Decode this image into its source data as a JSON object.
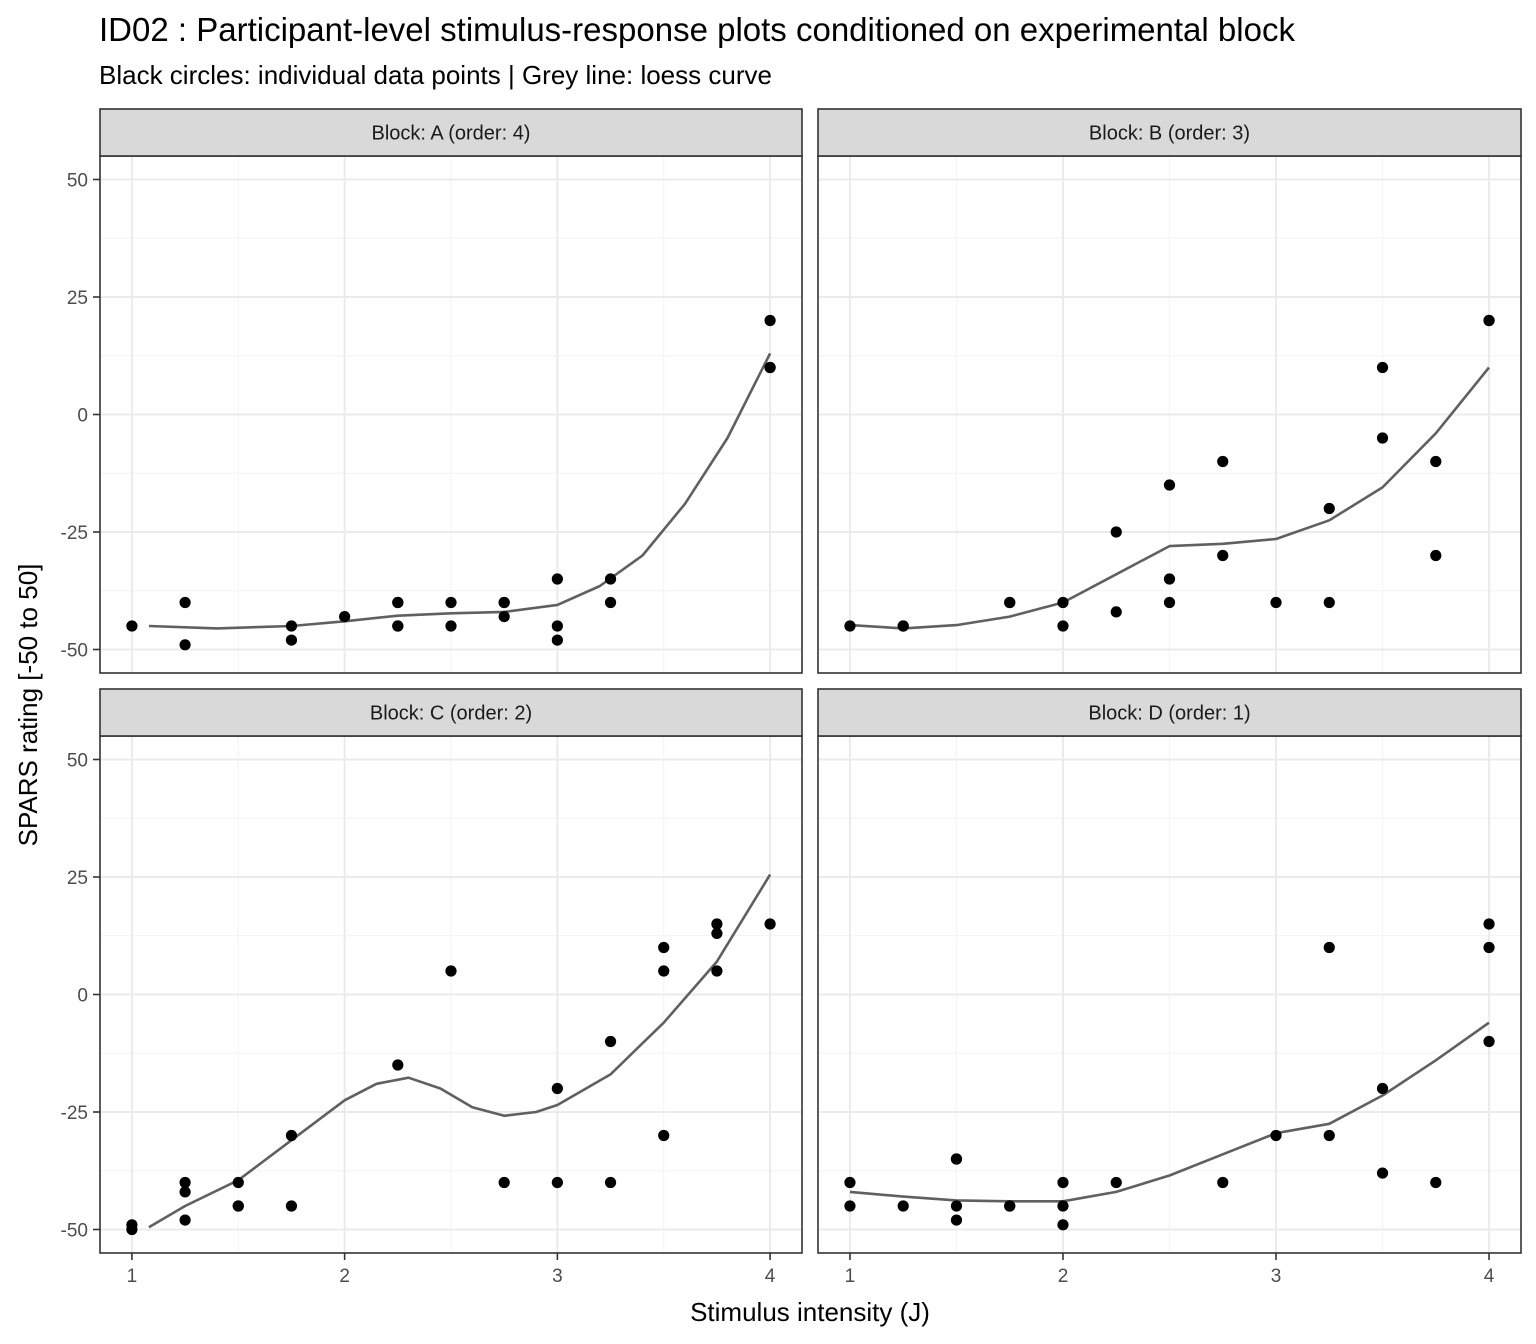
{
  "chart_data": {
    "type": "scatter",
    "title": "ID02 : Participant-level stimulus-response plots conditioned on experimental block",
    "subtitle": "Black circles: individual data points | Grey line: loess curve",
    "xlabel": "Stimulus intensity (J)",
    "ylabel": "SPARS rating [-50 to 50]",
    "xlim": [
      0.85,
      4.15
    ],
    "ylim": [
      -55,
      55
    ],
    "x_ticks": [
      1,
      2,
      3,
      4
    ],
    "y_ticks": [
      -50,
      -25,
      0,
      25,
      50
    ],
    "x_tick_labels": [
      "1",
      "2",
      "3",
      "4"
    ],
    "y_tick_labels": [
      "-50",
      "-25",
      "0",
      "25",
      "50"
    ],
    "grid": true,
    "colors": {
      "points": "#000000",
      "loess": "#606060",
      "strip_fill": "#d9d9d9",
      "panel_border": "#333333",
      "grid_major": "#ebebeb",
      "grid_minor": "#f5f5f5"
    },
    "panels": [
      {
        "strip": "Block: A (order: 4)",
        "points": [
          [
            1,
            -45
          ],
          [
            1.25,
            -40
          ],
          [
            1.25,
            -49
          ],
          [
            1.75,
            -45
          ],
          [
            1.75,
            -48
          ],
          [
            2,
            -43
          ],
          [
            2.25,
            -40
          ],
          [
            2.25,
            -40
          ],
          [
            2.25,
            -45
          ],
          [
            2.25,
            -45
          ],
          [
            2.5,
            -40
          ],
          [
            2.5,
            -45
          ],
          [
            2.75,
            -40
          ],
          [
            2.75,
            -40
          ],
          [
            2.75,
            -43
          ],
          [
            3,
            -35
          ],
          [
            3,
            -45
          ],
          [
            3,
            -48
          ],
          [
            3.25,
            -35
          ],
          [
            3.25,
            -40
          ],
          [
            4,
            20
          ],
          [
            4,
            10
          ],
          [
            4,
            10
          ]
        ],
        "loess": [
          [
            1.08,
            -45
          ],
          [
            1.4,
            -45.5
          ],
          [
            1.75,
            -45
          ],
          [
            2.0,
            -44
          ],
          [
            2.25,
            -42.8
          ],
          [
            2.5,
            -42.3
          ],
          [
            2.75,
            -42
          ],
          [
            3.0,
            -40.5
          ],
          [
            3.2,
            -36.5
          ],
          [
            3.4,
            -30
          ],
          [
            3.6,
            -19
          ],
          [
            3.8,
            -5
          ],
          [
            4.0,
            13
          ]
        ]
      },
      {
        "strip": "Block: B (order: 3)",
        "points": [
          [
            1,
            -45
          ],
          [
            1.25,
            -45
          ],
          [
            1.25,
            -45
          ],
          [
            1.75,
            -40
          ],
          [
            1.75,
            -40
          ],
          [
            2,
            -40
          ],
          [
            2,
            -45
          ],
          [
            2.25,
            -25
          ],
          [
            2.25,
            -42
          ],
          [
            2.5,
            -15
          ],
          [
            2.5,
            -35
          ],
          [
            2.5,
            -40
          ],
          [
            2.75,
            -10
          ],
          [
            2.75,
            -30
          ],
          [
            3,
            -40
          ],
          [
            3.25,
            -20
          ],
          [
            3.25,
            -40
          ],
          [
            3.5,
            10
          ],
          [
            3.5,
            -5
          ],
          [
            3.75,
            -10
          ],
          [
            3.75,
            -30
          ],
          [
            4,
            20
          ],
          [
            4,
            20
          ]
        ],
        "loess": [
          [
            1.0,
            -44.8
          ],
          [
            1.25,
            -45.5
          ],
          [
            1.5,
            -44.8
          ],
          [
            1.75,
            -43
          ],
          [
            2.0,
            -40
          ],
          [
            2.25,
            -34
          ],
          [
            2.5,
            -28
          ],
          [
            2.75,
            -27.5
          ],
          [
            3.0,
            -26.5
          ],
          [
            3.25,
            -22.5
          ],
          [
            3.5,
            -15.5
          ],
          [
            3.75,
            -4
          ],
          [
            4.0,
            10
          ]
        ]
      },
      {
        "strip": "Block: C (order: 2)",
        "points": [
          [
            1,
            -49
          ],
          [
            1,
            -50
          ],
          [
            1.25,
            -40
          ],
          [
            1.25,
            -42
          ],
          [
            1.25,
            -48
          ],
          [
            1.5,
            -40
          ],
          [
            1.5,
            -45
          ],
          [
            1.5,
            -45
          ],
          [
            1.75,
            -30
          ],
          [
            1.75,
            -45
          ],
          [
            2.25,
            -15
          ],
          [
            2.5,
            5
          ],
          [
            2.75,
            -40
          ],
          [
            3,
            -20
          ],
          [
            3,
            -40
          ],
          [
            3.25,
            -10
          ],
          [
            3.25,
            -40
          ],
          [
            3.5,
            10
          ],
          [
            3.5,
            5
          ],
          [
            3.5,
            -30
          ],
          [
            3.75,
            15
          ],
          [
            3.75,
            13
          ],
          [
            3.75,
            5
          ],
          [
            4,
            15
          ]
        ],
        "loess": [
          [
            1.08,
            -49.5
          ],
          [
            1.25,
            -45
          ],
          [
            1.5,
            -39.5
          ],
          [
            1.75,
            -31
          ],
          [
            2.0,
            -22.5
          ],
          [
            2.15,
            -19
          ],
          [
            2.3,
            -17.7
          ],
          [
            2.45,
            -20
          ],
          [
            2.6,
            -24
          ],
          [
            2.75,
            -25.8
          ],
          [
            2.9,
            -25
          ],
          [
            3.0,
            -23.5
          ],
          [
            3.25,
            -17
          ],
          [
            3.5,
            -6
          ],
          [
            3.75,
            7
          ],
          [
            4.0,
            25.5
          ]
        ]
      },
      {
        "strip": "Block: D (order: 1)",
        "points": [
          [
            1,
            -40
          ],
          [
            1,
            -45
          ],
          [
            1.25,
            -45
          ],
          [
            1.5,
            -35
          ],
          [
            1.5,
            -35
          ],
          [
            1.5,
            -45
          ],
          [
            1.5,
            -48
          ],
          [
            1.75,
            -45
          ],
          [
            1.75,
            -45
          ],
          [
            2,
            -40
          ],
          [
            2,
            -45
          ],
          [
            2,
            -49
          ],
          [
            2.25,
            -40
          ],
          [
            2.75,
            -40
          ],
          [
            3,
            -30
          ],
          [
            3.25,
            10
          ],
          [
            3.25,
            -30
          ],
          [
            3.5,
            -20
          ],
          [
            3.5,
            -38
          ],
          [
            3.75,
            -40
          ],
          [
            4,
            15
          ],
          [
            4,
            10
          ],
          [
            4,
            -10
          ]
        ],
        "loess": [
          [
            1.0,
            -42
          ],
          [
            1.25,
            -43
          ],
          [
            1.5,
            -43.8
          ],
          [
            1.75,
            -44
          ],
          [
            2.0,
            -44
          ],
          [
            2.25,
            -42
          ],
          [
            2.5,
            -38.5
          ],
          [
            2.75,
            -34
          ],
          [
            3.0,
            -29.5
          ],
          [
            3.25,
            -27.5
          ],
          [
            3.5,
            -21.5
          ],
          [
            3.75,
            -14
          ],
          [
            4.0,
            -6
          ]
        ]
      }
    ]
  }
}
